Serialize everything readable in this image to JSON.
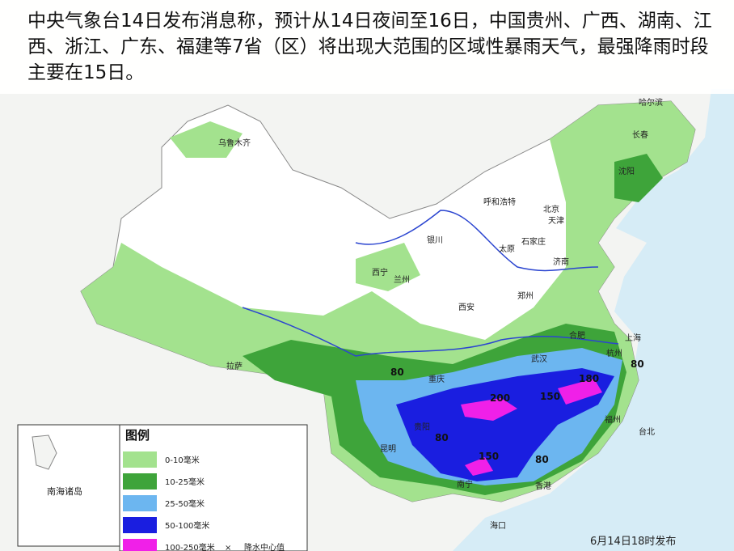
{
  "caption": "中央气象台14日发布消息称，预计从14日夜间至16日，中国贵州、广西、湖南、江西、浙江、广东、福建等7省（区）将出现大范围的区域性暴雨天气，最强降雨时段主要在15日。",
  "map": {
    "cities": [
      "乌鲁木齐",
      "哈尔滨",
      "长春",
      "沈阳",
      "呼和浩特",
      "北京",
      "天津",
      "石家庄",
      "太原",
      "银川",
      "济南",
      "西宁",
      "兰州",
      "西安",
      "郑州",
      "合肥",
      "上海",
      "武汉",
      "杭州",
      "拉萨",
      "重庆",
      "贵阳",
      "昆明",
      "福州",
      "台北",
      "南宁",
      "香港",
      "海口"
    ],
    "rain_labels": [
      80,
      200,
      150,
      180,
      80,
      150,
      80,
      80
    ],
    "legend": {
      "title": "图例",
      "items": [
        {
          "label": "0-10毫米",
          "color": "#a3e28e"
        },
        {
          "label": "10-25毫米",
          "color": "#3ea43a"
        },
        {
          "label": "25-50毫米",
          "color": "#6cb6f0"
        },
        {
          "label": "50-100毫米",
          "color": "#1a1ee0"
        },
        {
          "label": "100-250毫米",
          "color": "#f020e8"
        }
      ],
      "marker_symbol": "×",
      "marker_note": "降水中心值"
    },
    "inset_label": "南海诸岛",
    "issued": "6月14日18时发布"
  }
}
